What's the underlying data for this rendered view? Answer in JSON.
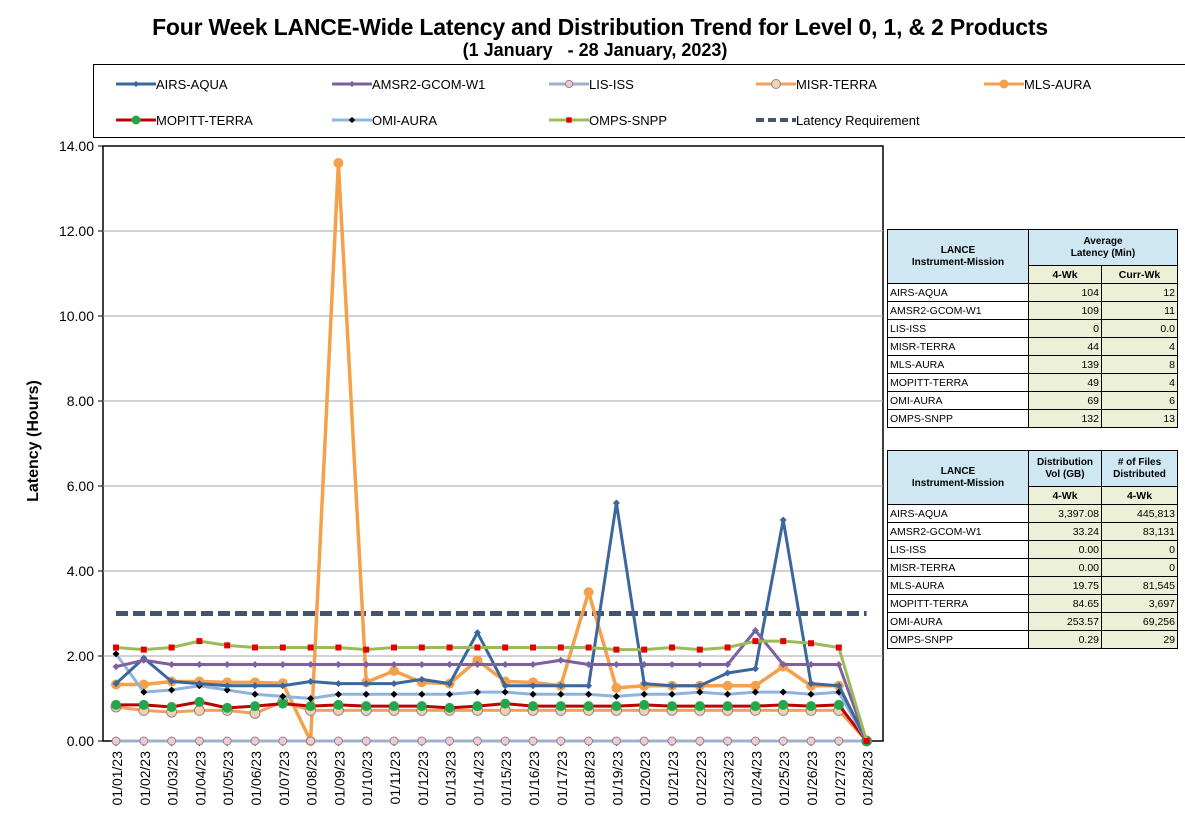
{
  "title": "Four Week LANCE-Wide Latency and Distribution Trend for Level 0, 1, & 2 Products",
  "subtitle": "(1 January   - 28 January, 2023)",
  "chart_data": {
    "type": "line",
    "ylabel": "Latency (Hours)",
    "xlabel": "",
    "ylim": [
      0,
      14
    ],
    "yticks": [
      "0.00",
      "2.00",
      "4.00",
      "6.00",
      "8.00",
      "10.00",
      "12.00",
      "14.00"
    ],
    "grid": true,
    "legend_position": "top",
    "x": [
      "01/01/23",
      "01/02/23",
      "01/03/23",
      "01/04/23",
      "01/05/23",
      "01/06/23",
      "01/07/23",
      "01/08/23",
      "01/09/23",
      "01/10/23",
      "01/11/23",
      "01/12/23",
      "01/13/23",
      "01/14/23",
      "01/15/23",
      "01/16/23",
      "01/17/23",
      "01/18/23",
      "01/19/23",
      "01/20/23",
      "01/21/23",
      "01/22/23",
      "01/23/23",
      "01/24/23",
      "01/25/23",
      "01/26/23",
      "01/27/23",
      "01/28/23"
    ],
    "series": [
      {
        "name": "AIRS-AQUA",
        "color": "#3b679c",
        "marker": "diamond",
        "values": [
          1.35,
          1.95,
          1.4,
          1.35,
          1.3,
          1.3,
          1.3,
          1.4,
          1.35,
          1.35,
          1.35,
          1.45,
          1.35,
          2.55,
          1.3,
          1.3,
          1.3,
          1.3,
          5.6,
          1.35,
          1.3,
          1.3,
          1.6,
          1.7,
          5.2,
          1.35,
          1.3,
          0.0
        ]
      },
      {
        "name": "AMSR2-GCOM-W1",
        "color": "#7e5fa0",
        "marker": "diamond",
        "values": [
          1.75,
          1.9,
          1.8,
          1.8,
          1.8,
          1.8,
          1.8,
          1.8,
          1.8,
          1.8,
          1.8,
          1.8,
          1.8,
          1.8,
          1.8,
          1.8,
          1.9,
          1.8,
          1.8,
          1.8,
          1.8,
          1.8,
          1.8,
          2.6,
          1.8,
          1.8,
          1.8,
          0.0
        ]
      },
      {
        "name": "LIS-ISS",
        "color": "#9fb0cc",
        "marker": "circle",
        "values": [
          0,
          0,
          0,
          0,
          0,
          0,
          0,
          0,
          0,
          0,
          0,
          0,
          0,
          0,
          0,
          0,
          0,
          0,
          0,
          0,
          0,
          0,
          0,
          0,
          0,
          0,
          0,
          0
        ]
      },
      {
        "name": "MISR-TERRA",
        "color": "#f2a15c",
        "marker": "circle",
        "values": [
          0.8,
          0.72,
          0.68,
          0.72,
          0.72,
          0.65,
          0.92,
          0.72,
          0.72,
          0.72,
          0.72,
          0.72,
          0.72,
          0.72,
          0.72,
          0.72,
          0.72,
          0.72,
          0.72,
          0.72,
          0.72,
          0.72,
          0.72,
          0.72,
          0.72,
          0.72,
          0.72,
          0.0
        ]
      },
      {
        "name": "MLS-AURA",
        "color": "#f5a04b",
        "marker": "circle",
        "values": [
          1.33,
          1.33,
          1.4,
          1.4,
          1.38,
          1.38,
          1.36,
          0.0,
          13.6,
          1.38,
          1.65,
          1.38,
          1.35,
          1.9,
          1.4,
          1.38,
          1.3,
          3.5,
          1.25,
          1.3,
          1.3,
          1.3,
          1.3,
          1.3,
          1.75,
          1.3,
          1.3,
          0.0
        ]
      },
      {
        "name": "MOPITT-TERRA",
        "color": "#c00000",
        "marker": "circle",
        "marker_color": "#22a84a",
        "values": [
          0.85,
          0.85,
          0.8,
          0.92,
          0.78,
          0.82,
          0.88,
          0.82,
          0.85,
          0.82,
          0.82,
          0.82,
          0.78,
          0.82,
          0.88,
          0.82,
          0.82,
          0.82,
          0.82,
          0.85,
          0.82,
          0.82,
          0.82,
          0.82,
          0.85,
          0.82,
          0.85,
          0.0
        ]
      },
      {
        "name": "OMI-AURA",
        "color": "#8fb3de",
        "marker": "diamond",
        "marker_color": "#000000",
        "values": [
          2.05,
          1.15,
          1.2,
          1.3,
          1.2,
          1.1,
          1.05,
          1.0,
          1.1,
          1.1,
          1.1,
          1.1,
          1.1,
          1.15,
          1.15,
          1.1,
          1.1,
          1.1,
          1.05,
          1.1,
          1.1,
          1.15,
          1.1,
          1.15,
          1.15,
          1.1,
          1.15,
          0.0
        ]
      },
      {
        "name": "OMPS-SNPP",
        "color": "#9bbb59",
        "marker": "square",
        "marker_color": "#e30000",
        "values": [
          2.2,
          2.15,
          2.2,
          2.35,
          2.25,
          2.2,
          2.2,
          2.2,
          2.2,
          2.15,
          2.2,
          2.2,
          2.2,
          2.2,
          2.2,
          2.2,
          2.2,
          2.2,
          2.15,
          2.15,
          2.2,
          2.15,
          2.2,
          2.35,
          2.35,
          2.3,
          2.2,
          0.0
        ]
      },
      {
        "name": "Latency Requirement",
        "color": "#44546a",
        "style": "dashed",
        "values": [
          3,
          3,
          3,
          3,
          3,
          3,
          3,
          3,
          3,
          3,
          3,
          3,
          3,
          3,
          3,
          3,
          3,
          3,
          3,
          3,
          3,
          3,
          3,
          3,
          3,
          3,
          3,
          3
        ]
      }
    ]
  },
  "latency_table": {
    "header_col1": [
      "LANCE",
      "Instrument-Mission"
    ],
    "header_col2": [
      "Average",
      "Latency (Min)"
    ],
    "sub_headers": [
      "4-Wk",
      "Curr-Wk"
    ],
    "rows": [
      {
        "name": "AIRS-AQUA",
        "wk4": "104",
        "curr": "12"
      },
      {
        "name": "AMSR2-GCOM-W1",
        "wk4": "109",
        "curr": "11"
      },
      {
        "name": "LIS-ISS",
        "wk4": "0",
        "curr": "0.0"
      },
      {
        "name": "MISR-TERRA",
        "wk4": "44",
        "curr": "4"
      },
      {
        "name": "MLS-AURA",
        "wk4": "139",
        "curr": "8"
      },
      {
        "name": "MOPITT-TERRA",
        "wk4": "49",
        "curr": "4"
      },
      {
        "name": "OMI-AURA",
        "wk4": "69",
        "curr": "6"
      },
      {
        "name": "OMPS-SNPP",
        "wk4": "132",
        "curr": "13"
      }
    ]
  },
  "distribution_table": {
    "header_col1": [
      "LANCE",
      "Instrument-Mission"
    ],
    "header_col2": [
      "Distribution",
      "Vol (GB)"
    ],
    "header_col3": [
      "# of Files",
      "Distributed"
    ],
    "sub_headers": [
      "4-Wk",
      "4-Wk"
    ],
    "rows": [
      {
        "name": "AIRS-AQUA",
        "vol": "3,397.08",
        "files": "445,813"
      },
      {
        "name": "AMSR2-GCOM-W1",
        "vol": "33.24",
        "files": "83,131"
      },
      {
        "name": "LIS-ISS",
        "vol": "0.00",
        "files": "0"
      },
      {
        "name": "MISR-TERRA",
        "vol": "0.00",
        "files": "0"
      },
      {
        "name": "MLS-AURA",
        "vol": "19.75",
        "files": "81,545"
      },
      {
        "name": "MOPITT-TERRA",
        "vol": "84.65",
        "files": "3,697"
      },
      {
        "name": "OMI-AURA",
        "vol": "253.57",
        "files": "69,256"
      },
      {
        "name": "OMPS-SNPP",
        "vol": "0.29",
        "files": "29"
      }
    ]
  }
}
